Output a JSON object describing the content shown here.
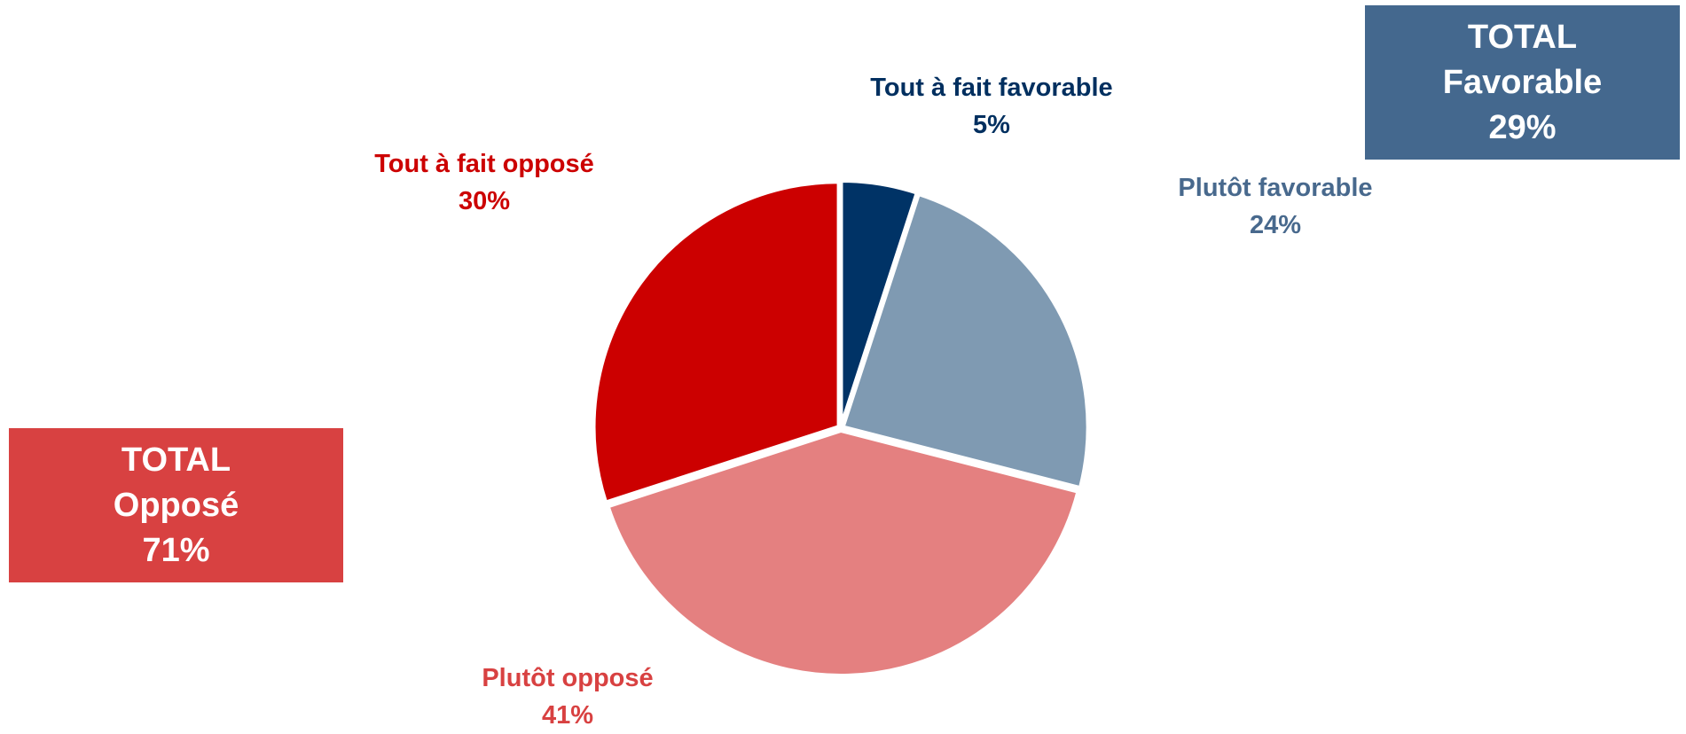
{
  "chart_data": {
    "type": "pie",
    "slices": [
      {
        "label": "Tout à fait favorable",
        "value": 5,
        "display": "5%",
        "color": "#003366",
        "label_color": "#002f5f"
      },
      {
        "label": "Plutôt favorable",
        "value": 24,
        "display": "24%",
        "color": "#7f9ab2",
        "label_color": "#48698d"
      },
      {
        "label": "Plutôt opposé",
        "value": 41,
        "display": "41%",
        "color": "#e48080",
        "label_color": "#d84141"
      },
      {
        "label": "Tout à fait opposé",
        "value": 30,
        "display": "30%",
        "color": "#cc0000",
        "label_color": "#cc0000"
      }
    ],
    "start_angle": "12 o'clock",
    "direction": "clockwise",
    "legend": "none"
  },
  "totals": {
    "favorable": {
      "line1": "TOTAL",
      "line2": "Favorable",
      "line3": "29%",
      "color": "#44688e"
    },
    "oppose": {
      "line1": "TOTAL",
      "line2": "Opposé",
      "line3": "71%",
      "color": "#d84141"
    }
  }
}
